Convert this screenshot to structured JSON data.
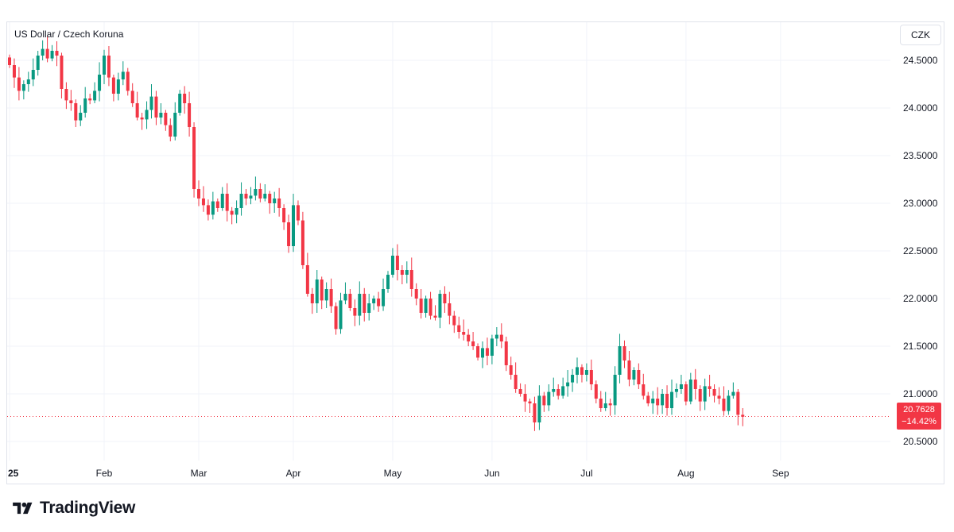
{
  "header": {
    "symbol": "US Dollar / Czech Koruna",
    "currency_button": "CZK"
  },
  "last_price": {
    "value": "20.7628",
    "change": "−14.42%"
  },
  "brand": {
    "name": "TradingView"
  },
  "colors": {
    "up": "#089981",
    "down": "#f23645",
    "grid": "#f0f3fa",
    "axis_text": "#131722"
  },
  "chart_data": {
    "type": "candlestick",
    "title": "US Dollar / Czech Koruna",
    "xlabel": "",
    "ylabel": "",
    "ylim": [
      20.3,
      24.9
    ],
    "y_ticks": [
      "24.5000",
      "24.0000",
      "23.5000",
      "23.0000",
      "22.5000",
      "22.0000",
      "21.5000",
      "21.0000",
      "20.5000"
    ],
    "x_ticks": [
      "25",
      "Feb",
      "Mar",
      "Apr",
      "May",
      "Jun",
      "Jul",
      "Aug",
      "Sep"
    ],
    "grid": true,
    "close": [
      24.45,
      24.32,
      24.18,
      24.25,
      24.3,
      24.4,
      24.55,
      24.62,
      24.52,
      24.6,
      24.55,
      24.2,
      24.08,
      24.05,
      23.87,
      23.95,
      24.1,
      24.08,
      24.18,
      24.35,
      24.55,
      24.32,
      24.15,
      24.3,
      24.38,
      24.18,
      24.05,
      23.9,
      23.88,
      23.98,
      24.12,
      23.9,
      23.95,
      23.82,
      23.7,
      23.95,
      24.15,
      24.05,
      23.8,
      23.15,
      23.05,
      22.98,
      22.88,
      23.02,
      22.95,
      23.1,
      22.92,
      22.88,
      22.95,
      23.1,
      23.05,
      23.08,
      23.15,
      23.05,
      23.1,
      23.0,
      23.05,
      22.95,
      22.8,
      22.55,
      22.98,
      22.82,
      22.35,
      22.05,
      21.95,
      22.2,
      21.98,
      22.1,
      21.92,
      21.68,
      21.98,
      22.05,
      21.9,
      21.82,
      22.05,
      21.85,
      21.95,
      22.0,
      21.92,
      22.1,
      22.25,
      22.45,
      22.3,
      22.25,
      22.3,
      22.1,
      22.0,
      21.85,
      22.0,
      21.82,
      21.8,
      22.05,
      21.95,
      21.82,
      21.72,
      21.65,
      21.62,
      21.55,
      21.5,
      21.38,
      21.48,
      21.4,
      21.58,
      21.62,
      21.55,
      21.3,
      21.2,
      21.05,
      21.0,
      20.92,
      20.9,
      20.7,
      20.98,
      20.88,
      21.02,
      21.05,
      20.98,
      21.08,
      21.12,
      21.2,
      21.28,
      21.2,
      21.25,
      21.1,
      20.95,
      20.85,
      20.9,
      20.88,
      21.2,
      21.5,
      21.35,
      21.15,
      21.25,
      21.1,
      20.98,
      20.9,
      20.95,
      20.88,
      21.0,
      20.85,
      21.02,
      21.05,
      21.1,
      20.92,
      21.15,
      21.05,
      20.92,
      21.08,
      21.05,
      20.98,
      20.95,
      20.82,
      20.98,
      21.02,
      20.78,
      20.76
    ],
    "x_tick_index": [
      0,
      20,
      40,
      60,
      81,
      102,
      122,
      143,
      163
    ]
  }
}
